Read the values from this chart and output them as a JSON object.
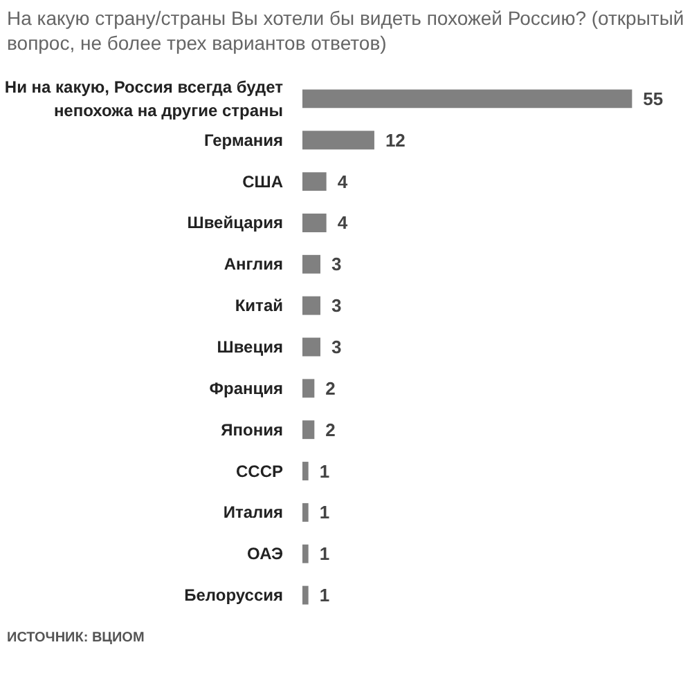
{
  "chart_data": {
    "type": "bar",
    "orientation": "horizontal",
    "title": "На какую страну/страны Вы хотели бы видеть похожей Россию? (открытый вопрос, не более трех вариантов ответов)",
    "categories": [
      "Ни на какую, Россия всегда будет непохожа на другие страны",
      "Германия",
      "США",
      "Швейцария",
      "Англия",
      "Китай",
      "Швеция",
      "Франция",
      "Япония",
      "СССР",
      "Италия",
      "ОАЭ",
      "Белоруссия"
    ],
    "values": [
      55,
      12,
      4,
      4,
      3,
      3,
      3,
      2,
      2,
      1,
      1,
      1,
      1
    ],
    "color": "#808080",
    "data_labels": true,
    "tick_labels": "y",
    "grid": false,
    "annotations": [
      "ИСТОЧНИК: ВЦИОМ"
    ]
  }
}
